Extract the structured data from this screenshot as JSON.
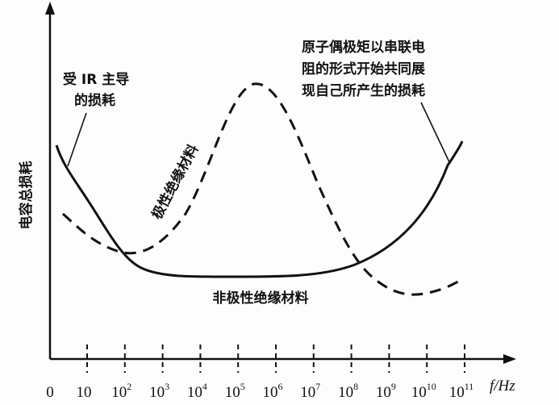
{
  "chart_data": {
    "type": "line",
    "ylabel": "电容总损耗",
    "xlabel": "f/Hz",
    "x_ticks": [
      {
        "base": "0",
        "exp": ""
      },
      {
        "base": "10",
        "exp": ""
      },
      {
        "base": "10",
        "exp": "2"
      },
      {
        "base": "10",
        "exp": "3"
      },
      {
        "base": "10",
        "exp": "4"
      },
      {
        "base": "10",
        "exp": "5"
      },
      {
        "base": "10",
        "exp": "6"
      },
      {
        "base": "10",
        "exp": "7"
      },
      {
        "base": "10",
        "exp": "8"
      },
      {
        "base": "10",
        "exp": "9"
      },
      {
        "base": "10",
        "exp": "10"
      },
      {
        "base": "10",
        "exp": "11"
      }
    ],
    "series": [
      {
        "name": "非极性绝缘材料",
        "style": "solid"
      },
      {
        "name": "极性绝缘材料",
        "style": "dashed"
      }
    ],
    "annotations": {
      "ir_loss_line1": "受 IR 主导",
      "ir_loss_line2": "的损耗",
      "dipole_line1": "原子偶极矩以串联电",
      "dipole_line2": "阻的形式开始共同展",
      "dipole_line3": "现自己所产生的损耗"
    }
  }
}
